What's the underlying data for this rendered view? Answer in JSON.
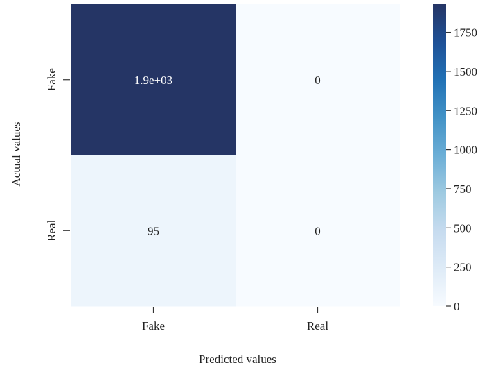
{
  "chart_data": {
    "type": "heatmap",
    "title": "",
    "xlabel": "Predicted values",
    "ylabel": "Actual values",
    "x_categories": [
      "Fake",
      "Real"
    ],
    "y_categories": [
      "Fake",
      "Real"
    ],
    "values": [
      [
        1930,
        0
      ],
      [
        95,
        0
      ]
    ],
    "cell_labels": [
      [
        "1.9e+03",
        "0"
      ],
      [
        "95",
        "0"
      ]
    ],
    "colormap": "Blues",
    "color_range": [
      0,
      1930
    ],
    "colorbar_ticks": [
      0,
      250,
      500,
      750,
      1000,
      1250,
      1500,
      1750
    ],
    "colors": {
      "low": "#f7fbff",
      "high": "#253565",
      "annot_dark_bg": "#ffffff",
      "annot_light_bg": "#222222"
    }
  }
}
